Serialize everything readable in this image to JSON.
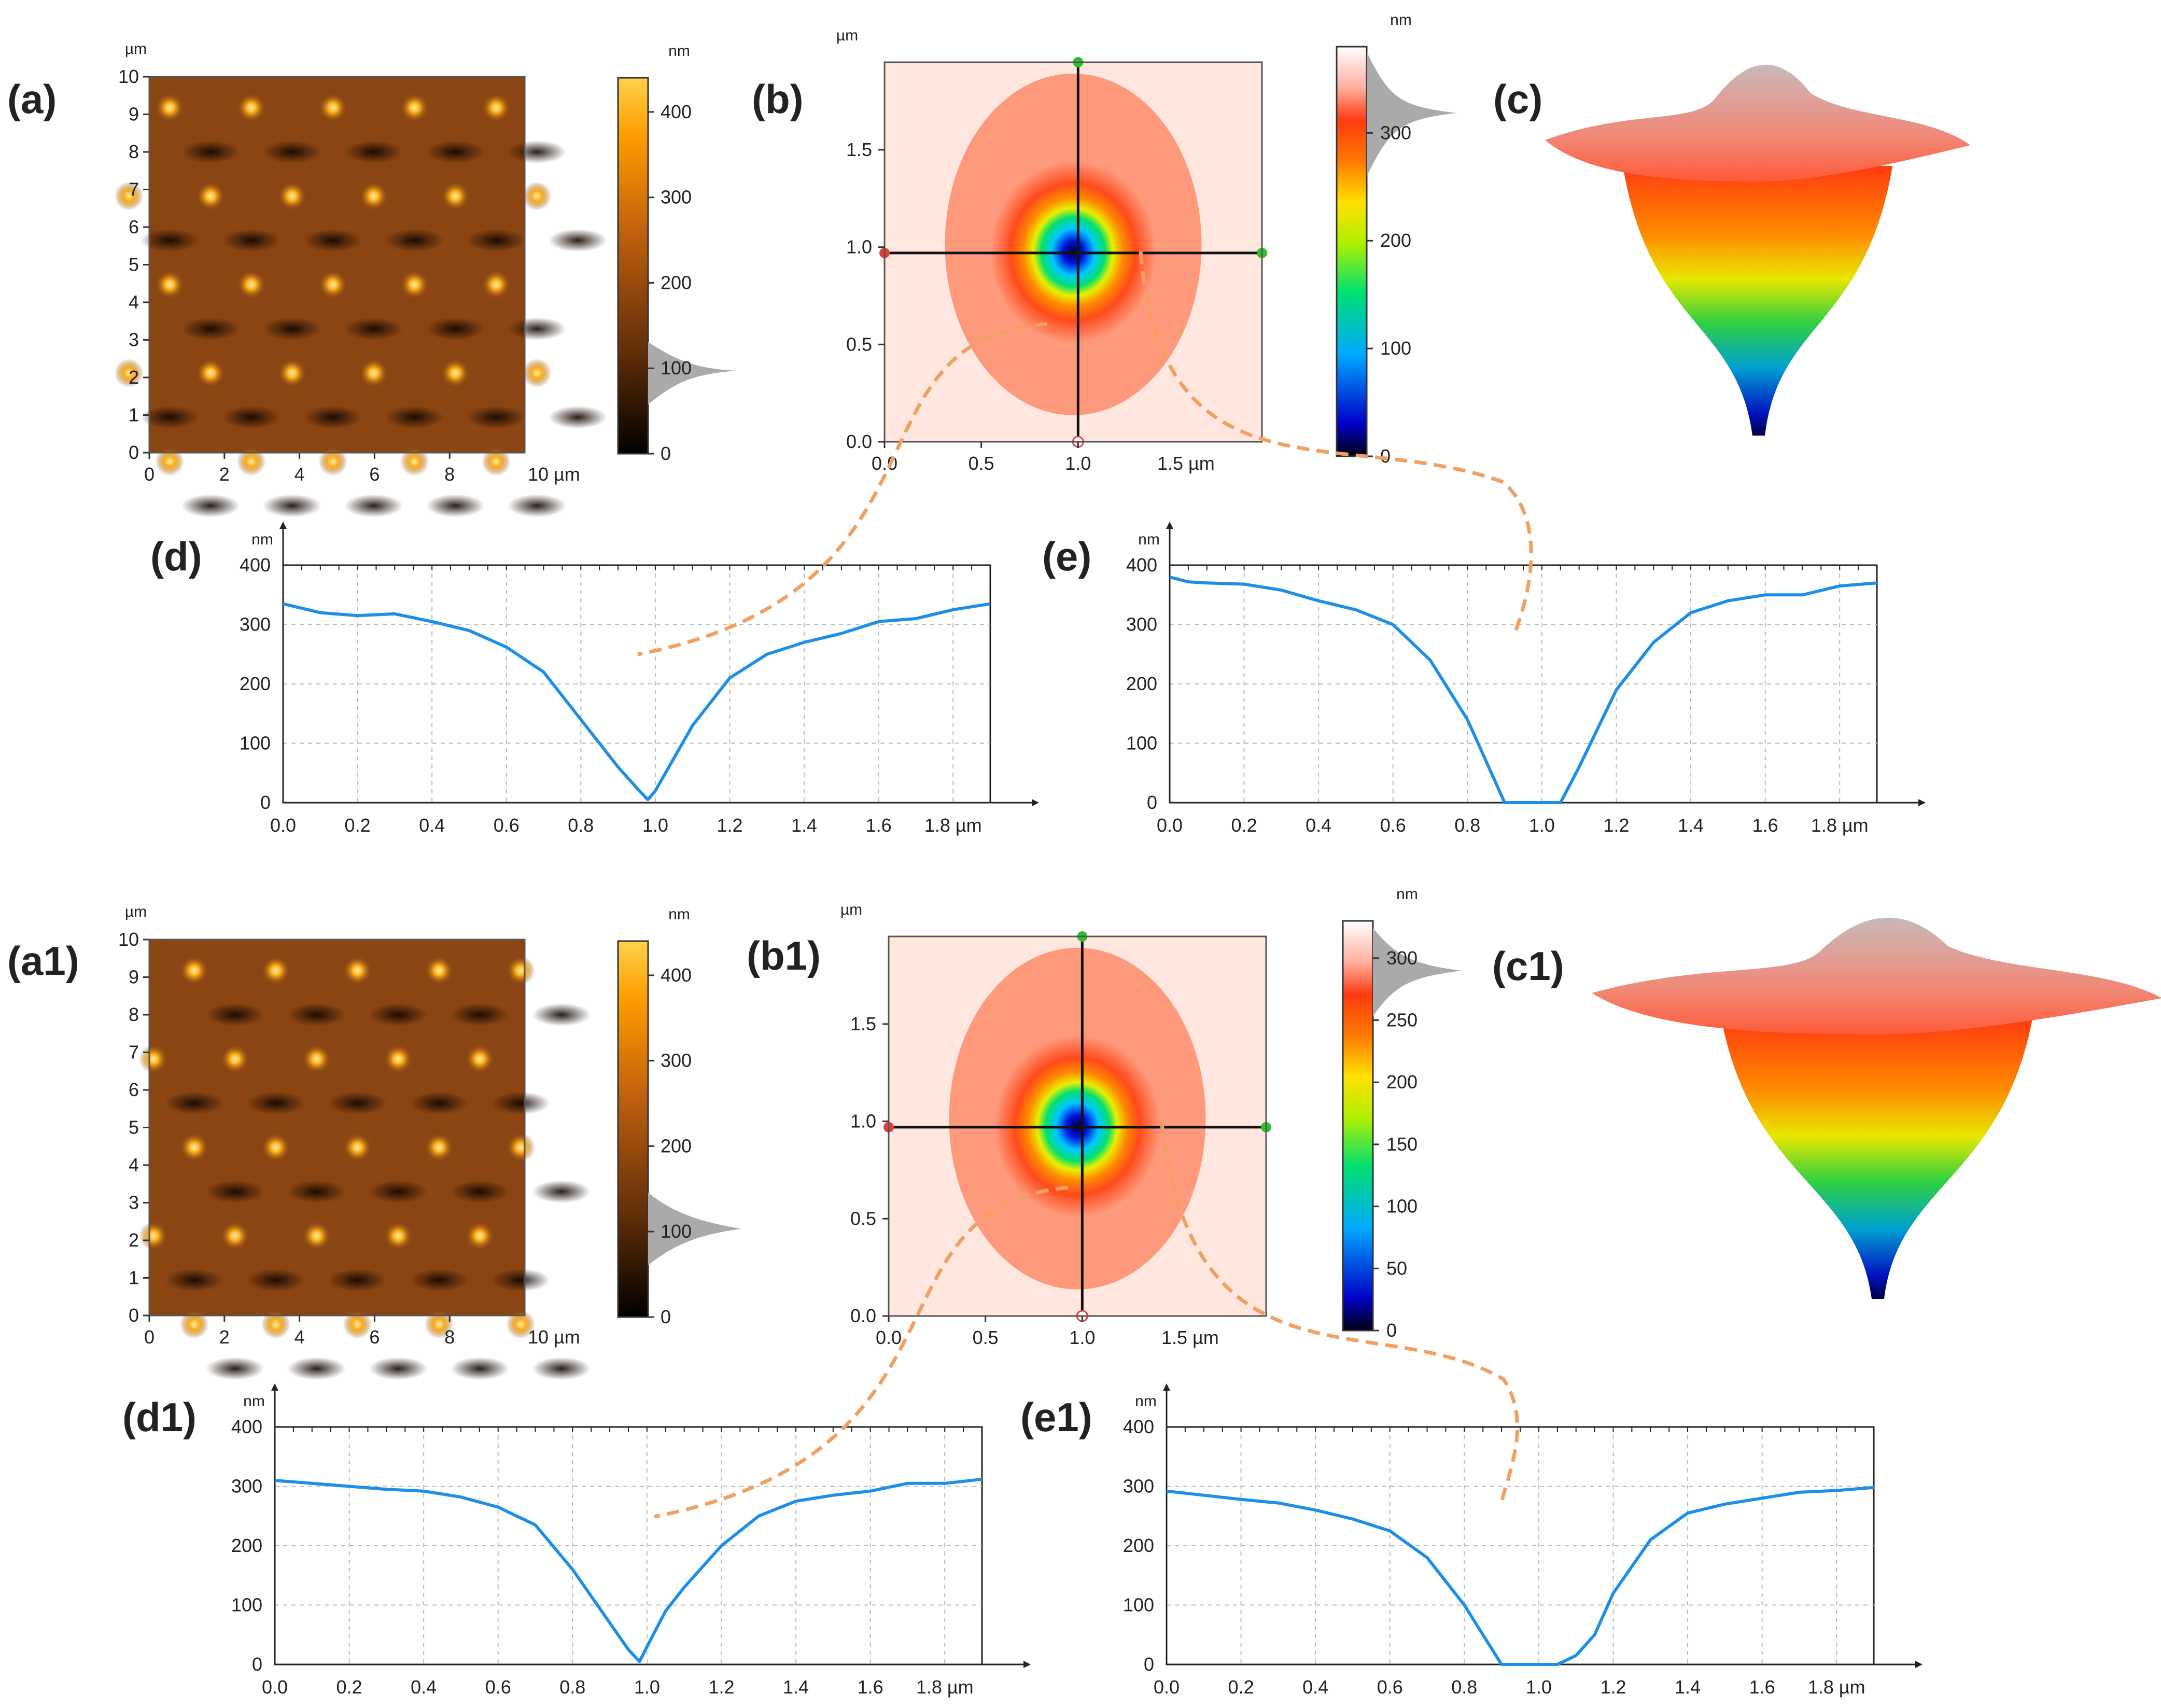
{
  "chart_data": [
    {
      "id": "a",
      "type": "heatmap",
      "panel_label": "(a)",
      "axis_unit": "µm",
      "x_unit_label": "10 µm",
      "y_ticks": [
        "0",
        "1",
        "2",
        "3",
        "4",
        "5",
        "6",
        "7",
        "8",
        "9",
        "10"
      ],
      "x_ticks": [
        "0",
        "2",
        "4",
        "6",
        "8"
      ],
      "colorbar_unit": "nm",
      "colorbar_ticks": [
        "0",
        "100",
        "200",
        "300",
        "400"
      ],
      "colorscale": "copper",
      "grid": {
        "cols": 5,
        "rows": 4
      }
    },
    {
      "id": "b",
      "type": "heatmap",
      "panel_label": "(b)",
      "axis_unit": "µm",
      "x_unit_label": "1.5 µm",
      "x_ticks": [
        "0.0",
        "0.5",
        "1.0"
      ],
      "y_ticks": [
        "0.0",
        "0.5",
        "1.0",
        "1.5"
      ],
      "colorbar_unit": "nm",
      "colorbar_ticks": [
        "0",
        "100",
        "200",
        "300"
      ],
      "colorscale": "rainbow",
      "pit_center": [
        1.0,
        0.97
      ]
    },
    {
      "id": "c",
      "type": "surface3d",
      "panel_label": "(c)"
    },
    {
      "id": "d",
      "type": "line",
      "panel_label": "(d)",
      "ylabel": "nm",
      "x_unit_label": "1.8 µm",
      "xlim": [
        0,
        1.9
      ],
      "ylim": [
        0,
        400
      ],
      "x_ticks": [
        "0.0",
        "0.2",
        "0.4",
        "0.6",
        "0.8",
        "1.0",
        "1.2",
        "1.4",
        "1.6"
      ],
      "y_ticks": [
        "0",
        "100",
        "200",
        "300",
        "400"
      ],
      "x": [
        0,
        0.1,
        0.2,
        0.3,
        0.4,
        0.5,
        0.6,
        0.7,
        0.8,
        0.9,
        0.95,
        0.98,
        1.0,
        1.05,
        1.1,
        1.2,
        1.3,
        1.4,
        1.5,
        1.6,
        1.7,
        1.8,
        1.9
      ],
      "y": [
        335,
        320,
        315,
        318,
        305,
        290,
        262,
        220,
        140,
        60,
        25,
        5,
        20,
        75,
        130,
        210,
        250,
        270,
        285,
        305,
        310,
        325,
        335
      ]
    },
    {
      "id": "e",
      "type": "line",
      "panel_label": "(e)",
      "ylabel": "nm",
      "x_unit_label": "1.8 µm",
      "xlim": [
        0,
        1.9
      ],
      "ylim": [
        0,
        400
      ],
      "x_ticks": [
        "0.0",
        "0.2",
        "0.4",
        "0.6",
        "0.8",
        "1.0",
        "1.2",
        "1.4",
        "1.6"
      ],
      "y_ticks": [
        "0",
        "100",
        "200",
        "300",
        "400"
      ],
      "x": [
        0,
        0.05,
        0.1,
        0.2,
        0.3,
        0.4,
        0.5,
        0.6,
        0.7,
        0.8,
        0.85,
        0.9,
        0.95,
        1.0,
        1.05,
        1.1,
        1.2,
        1.3,
        1.4,
        1.5,
        1.6,
        1.7,
        1.8,
        1.9
      ],
      "y": [
        380,
        372,
        370,
        368,
        358,
        340,
        325,
        300,
        240,
        140,
        70,
        0,
        0,
        0,
        0,
        60,
        190,
        270,
        320,
        340,
        350,
        350,
        365,
        370
      ]
    },
    {
      "id": "a1",
      "type": "heatmap",
      "panel_label": "(a1)",
      "axis_unit": "µm",
      "x_unit_label": "10 µm",
      "y_ticks": [
        "0",
        "1",
        "2",
        "3",
        "4",
        "5",
        "6",
        "7",
        "8",
        "9",
        "10"
      ],
      "x_ticks": [
        "0",
        "2",
        "4",
        "6",
        "8"
      ],
      "colorbar_unit": "nm",
      "colorbar_ticks": [
        "0",
        "100",
        "200",
        "300",
        "400"
      ],
      "colorscale": "copper",
      "grid": {
        "cols": 5,
        "rows": 4
      }
    },
    {
      "id": "b1",
      "type": "heatmap",
      "panel_label": "(b1)",
      "axis_unit": "µm",
      "x_unit_label": "1.5 µm",
      "x_ticks": [
        "0.0",
        "0.5",
        "1.0"
      ],
      "y_ticks": [
        "0.0",
        "0.5",
        "1.0",
        "1.5"
      ],
      "colorbar_unit": "nm",
      "colorbar_ticks": [
        "0",
        "50",
        "100",
        "150",
        "200",
        "250",
        "300"
      ],
      "colorscale": "rainbow",
      "pit_center": [
        1.0,
        0.97
      ]
    },
    {
      "id": "c1",
      "type": "surface3d",
      "panel_label": "(c1)"
    },
    {
      "id": "d1",
      "type": "line",
      "panel_label": "(d1)",
      "ylabel": "nm",
      "x_unit_label": "1.8 µm",
      "xlim": [
        0,
        1.9
      ],
      "ylim": [
        0,
        400
      ],
      "x_ticks": [
        "0.0",
        "0.2",
        "0.4",
        "0.6",
        "0.8",
        "1.0",
        "1.2",
        "1.4",
        "1.6"
      ],
      "y_ticks": [
        "0",
        "100",
        "200",
        "300",
        "400"
      ],
      "x": [
        0,
        0.1,
        0.2,
        0.3,
        0.4,
        0.5,
        0.6,
        0.7,
        0.8,
        0.9,
        0.95,
        0.98,
        1.0,
        1.05,
        1.1,
        1.2,
        1.3,
        1.4,
        1.5,
        1.6,
        1.7,
        1.8,
        1.9
      ],
      "y": [
        310,
        305,
        300,
        295,
        292,
        282,
        265,
        235,
        160,
        70,
        25,
        5,
        30,
        90,
        130,
        200,
        250,
        275,
        285,
        292,
        305,
        305,
        312
      ]
    },
    {
      "id": "e1",
      "type": "line",
      "panel_label": "(e1)",
      "ylabel": "nm",
      "x_unit_label": "1.8 µm",
      "xlim": [
        0,
        1.9
      ],
      "ylim": [
        0,
        400
      ],
      "x_ticks": [
        "0.0",
        "0.2",
        "0.4",
        "0.6",
        "0.8",
        "1.0",
        "1.2",
        "1.4",
        "1.6"
      ],
      "y_ticks": [
        "0",
        "100",
        "200",
        "300",
        "400"
      ],
      "x": [
        0,
        0.1,
        0.2,
        0.3,
        0.4,
        0.5,
        0.6,
        0.7,
        0.8,
        0.85,
        0.9,
        0.95,
        1.0,
        1.05,
        1.1,
        1.15,
        1.2,
        1.3,
        1.4,
        1.5,
        1.6,
        1.7,
        1.8,
        1.9
      ],
      "y": [
        292,
        285,
        278,
        272,
        260,
        245,
        225,
        180,
        100,
        50,
        0,
        0,
        0,
        0,
        15,
        50,
        120,
        210,
        255,
        270,
        280,
        290,
        293,
        298
      ]
    }
  ]
}
